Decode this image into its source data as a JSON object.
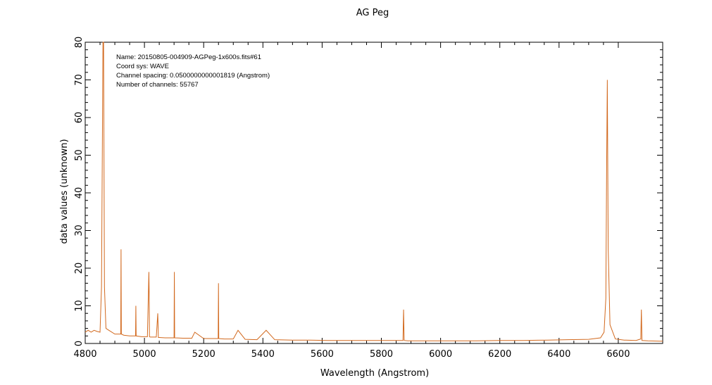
{
  "chart_data": {
    "type": "line",
    "title": "AG Peg",
    "xlabel": "Wavelength (Angstrom)",
    "ylabel": "data values (unknown)",
    "xlim": [
      4800,
      6750
    ],
    "ylim": [
      0,
      80
    ],
    "xticks": [
      4800,
      5000,
      5200,
      5400,
      5600,
      5800,
      6000,
      6200,
      6400,
      6600
    ],
    "yticks": [
      0,
      10,
      20,
      30,
      40,
      50,
      60,
      70,
      80
    ],
    "grid": false,
    "line_color": "#d2691e",
    "info_lines": [
      "Name: 20150805-004909-AGPeg-1x600s.fits#61",
      "Coord sys: WAVE",
      "Channel spacing: 0.0500000000001819 (Angstrom)",
      "Number of channels: 55767"
    ],
    "series": [
      {
        "x": [
          4800,
          4810,
          4820,
          4830,
          4840,
          4850,
          4855,
          4860,
          4861,
          4862,
          4865,
          4870,
          4880,
          4900,
          4920,
          4921,
          4922,
          4930,
          4950,
          4970,
          4971,
          4972,
          4990,
          5010,
          5015,
          5016,
          5017,
          5020,
          5040,
          5045,
          5047,
          5050,
          5070,
          5100,
          5101,
          5102,
          5130,
          5160,
          5170,
          5200,
          5230,
          5240,
          5249,
          5250,
          5251,
          5270,
          5300,
          5316,
          5340,
          5380,
          5411,
          5440,
          5500,
          5560,
          5620,
          5700,
          5760,
          5820,
          5860,
          5873,
          5875,
          5877,
          5890,
          5950,
          6000,
          6060,
          6120,
          6200,
          6280,
          6360,
          6430,
          6500,
          6540,
          6552,
          6558,
          6561,
          6563,
          6566,
          6572,
          6590,
          6620,
          6660,
          6676,
          6678,
          6680,
          6700,
          6740,
          6750
        ],
        "y": [
          3,
          3.5,
          3.0,
          3.5,
          3.2,
          3.0,
          15,
          80,
          80,
          80,
          15,
          4,
          3.5,
          2.5,
          2.5,
          25,
          2.5,
          2.2,
          2.0,
          2.0,
          10,
          2.0,
          1.8,
          1.8,
          19,
          13,
          1.8,
          1.7,
          1.7,
          8,
          1.6,
          1.6,
          1.5,
          1.5,
          19,
          1.5,
          1.4,
          1.4,
          3,
          1.3,
          1.3,
          1.3,
          1.3,
          16,
          1.3,
          1.2,
          1.2,
          3.5,
          1.1,
          1.0,
          3.5,
          1.0,
          0.9,
          0.9,
          0.8,
          0.8,
          0.8,
          0.8,
          0.8,
          0.8,
          9,
          0.8,
          0.7,
          0.7,
          0.7,
          0.7,
          0.7,
          0.8,
          0.8,
          0.9,
          1.0,
          1.1,
          1.5,
          3,
          12,
          50,
          70,
          25,
          5,
          1.2,
          0.9,
          0.8,
          1.2,
          9,
          0.8,
          0.7,
          0.6,
          0.6
        ]
      }
    ]
  }
}
